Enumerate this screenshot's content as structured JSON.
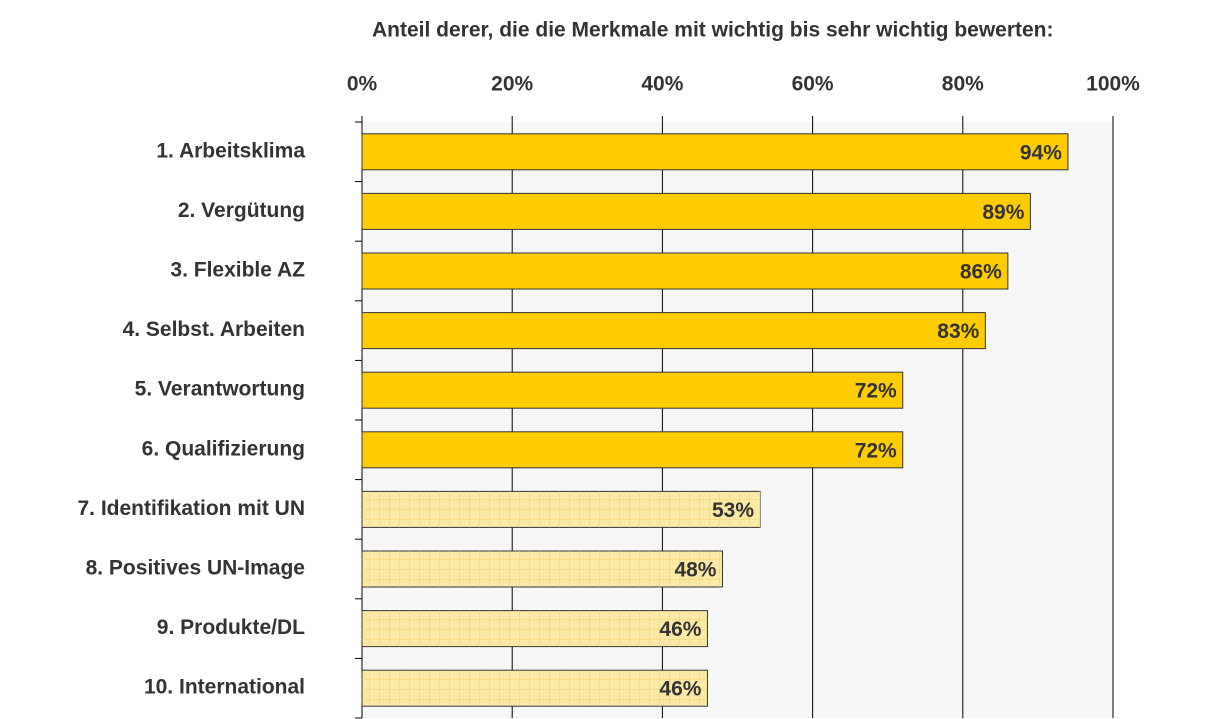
{
  "chart_data": {
    "type": "barh",
    "title": "Anteil derer, die die Merkmale mit wichtig bis sehr wichtig bewerten:",
    "categories": [
      "1. Arbeitsklima",
      "2. Vergütung",
      "3. Flexible AZ",
      "4. Selbst. Arbeiten",
      "5. Verantwortung",
      "6. Qualifizierung",
      "7. Identifikation mit UN",
      "8. Positives UN-Image",
      "9. Produkte/DL",
      "10. International"
    ],
    "values": [
      94,
      89,
      86,
      83,
      72,
      72,
      53,
      48,
      46,
      46
    ],
    "value_labels": [
      "94%",
      "89%",
      "86%",
      "83%",
      "72%",
      "72%",
      "53%",
      "48%",
      "46%",
      "46%"
    ],
    "colors": [
      "#ffcc00",
      "#ffcc00",
      "#ffcc00",
      "#ffcc00",
      "#ffcc00",
      "#ffcc00",
      "#fce9a6",
      "#fce9a6",
      "#fce9a6",
      "#fce9a6"
    ],
    "xlim": [
      0,
      100
    ],
    "xticks": [
      {
        "value": 0,
        "label": "0%"
      },
      {
        "value": 20,
        "label": "20%"
      },
      {
        "value": 40,
        "label": "40%"
      },
      {
        "value": 60,
        "label": "60%"
      },
      {
        "value": 80,
        "label": "80%"
      },
      {
        "value": 100,
        "label": "100%"
      }
    ],
    "grid": true
  }
}
